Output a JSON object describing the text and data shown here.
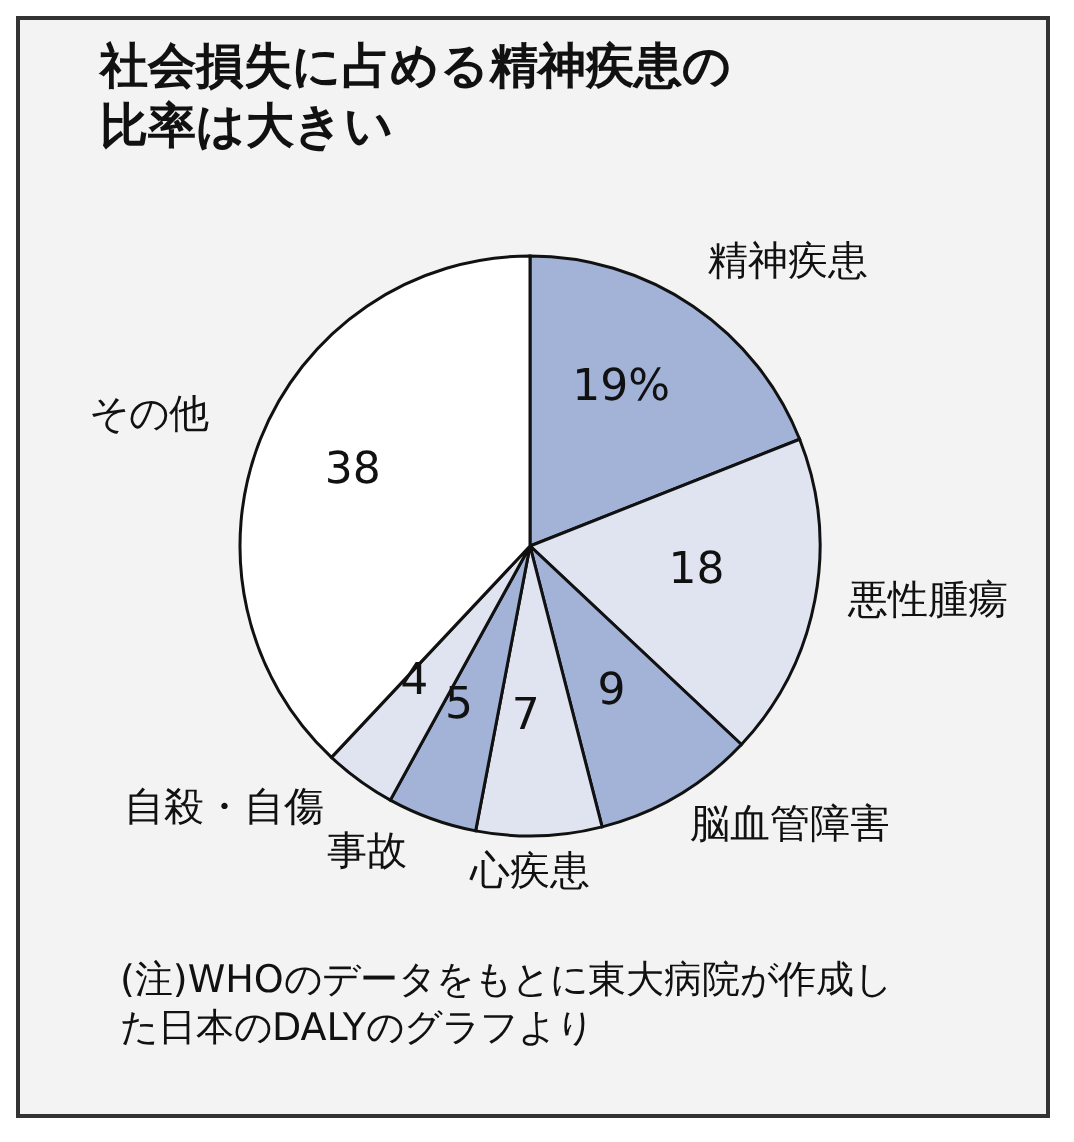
{
  "chart_data": {
    "type": "pie",
    "title": "社会損失に占める精神疾患の比率は大きい",
    "categories": [
      "精神疾患",
      "悪性腫瘍",
      "脳血管障害",
      "心疾患",
      "事故",
      "自殺・自傷",
      "その他"
    ],
    "values": [
      19,
      18,
      9,
      7,
      5,
      4,
      38
    ],
    "colors": [
      "#a3b3d8",
      "#dfe4f0",
      "#a3b3d8",
      "#dfe4f0",
      "#a3b3d8",
      "#dfe4f0",
      "#ffffff"
    ],
    "value_labels": [
      "19%",
      "18",
      "9",
      "7",
      "5",
      "4",
      "38"
    ],
    "annotations": [
      "(注)WHOのデータをもとに東大病院が作成した日本のDALYのグラフより"
    ]
  }
}
